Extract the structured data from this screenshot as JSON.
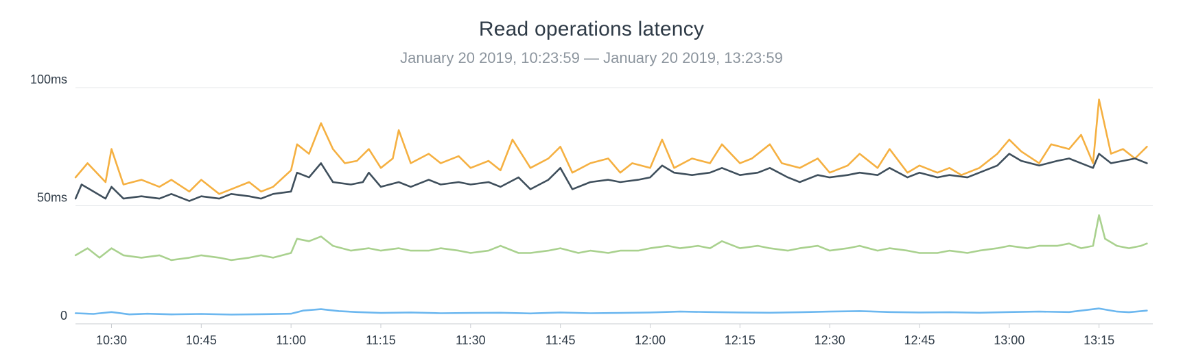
{
  "chart_data": {
    "type": "line",
    "title": "Read operations latency",
    "subtitle": "January 20 2019, 10:23:59 — January 20 2019, 13:23:59",
    "x_range": [
      "10:23:59",
      "13:23:59"
    ],
    "x_ticks": [
      "10:30",
      "10:45",
      "11:00",
      "11:15",
      "11:30",
      "11:45",
      "12:00",
      "12:15",
      "12:30",
      "12:45",
      "13:00",
      "13:15"
    ],
    "y_ticks": [
      "0",
      "50ms",
      "100ms"
    ],
    "ylim": [
      0,
      100
    ],
    "grid": true,
    "series": [
      {
        "color": "#f5b041",
        "points": [
          [
            "10:24",
            62
          ],
          [
            "10:26",
            68
          ],
          [
            "10:29",
            60
          ],
          [
            "10:30",
            74
          ],
          [
            "10:32",
            59
          ],
          [
            "10:35",
            61
          ],
          [
            "10:38",
            58
          ],
          [
            "10:40",
            61
          ],
          [
            "10:43",
            56
          ],
          [
            "10:45",
            61
          ],
          [
            "10:48",
            55
          ],
          [
            "10:50",
            57
          ],
          [
            "10:53",
            60
          ],
          [
            "10:55",
            56
          ],
          [
            "10:57",
            58
          ],
          [
            "11:00",
            65
          ],
          [
            "11:01",
            76
          ],
          [
            "11:03",
            72
          ],
          [
            "11:05",
            85
          ],
          [
            "11:07",
            74
          ],
          [
            "11:09",
            68
          ],
          [
            "11:11",
            69
          ],
          [
            "11:13",
            74
          ],
          [
            "11:15",
            66
          ],
          [
            "11:17",
            70
          ],
          [
            "11:18",
            82
          ],
          [
            "11:20",
            68
          ],
          [
            "11:23",
            72
          ],
          [
            "11:25",
            68
          ],
          [
            "11:28",
            71
          ],
          [
            "11:30",
            66
          ],
          [
            "11:33",
            69
          ],
          [
            "11:35",
            65
          ],
          [
            "11:37",
            78
          ],
          [
            "11:40",
            66
          ],
          [
            "11:43",
            70
          ],
          [
            "11:45",
            75
          ],
          [
            "11:47",
            64
          ],
          [
            "11:50",
            68
          ],
          [
            "11:53",
            70
          ],
          [
            "11:55",
            64
          ],
          [
            "11:57",
            68
          ],
          [
            "12:00",
            66
          ],
          [
            "12:02",
            78
          ],
          [
            "12:04",
            66
          ],
          [
            "12:07",
            70
          ],
          [
            "12:10",
            68
          ],
          [
            "12:12",
            76
          ],
          [
            "12:15",
            68
          ],
          [
            "12:17",
            70
          ],
          [
            "12:20",
            76
          ],
          [
            "12:22",
            68
          ],
          [
            "12:25",
            66
          ],
          [
            "12:28",
            70
          ],
          [
            "12:30",
            64
          ],
          [
            "12:33",
            67
          ],
          [
            "12:35",
            72
          ],
          [
            "12:38",
            66
          ],
          [
            "12:40",
            74
          ],
          [
            "12:43",
            64
          ],
          [
            "12:45",
            67
          ],
          [
            "12:48",
            64
          ],
          [
            "12:50",
            66
          ],
          [
            "12:52",
            63
          ],
          [
            "12:55",
            66
          ],
          [
            "12:58",
            72
          ],
          [
            "13:00",
            78
          ],
          [
            "13:02",
            73
          ],
          [
            "13:05",
            68
          ],
          [
            "13:07",
            76
          ],
          [
            "13:10",
            74
          ],
          [
            "13:12",
            80
          ],
          [
            "13:14",
            68
          ],
          [
            "13:15",
            95
          ],
          [
            "13:17",
            72
          ],
          [
            "13:19",
            74
          ],
          [
            "13:21",
            70
          ],
          [
            "13:23",
            75
          ]
        ]
      },
      {
        "color": "#3f4f5c",
        "points": [
          [
            "10:24",
            53
          ],
          [
            "10:25",
            59
          ],
          [
            "10:27",
            56
          ],
          [
            "10:29",
            53
          ],
          [
            "10:30",
            58
          ],
          [
            "10:32",
            53
          ],
          [
            "10:35",
            54
          ],
          [
            "10:38",
            53
          ],
          [
            "10:40",
            55
          ],
          [
            "10:43",
            52
          ],
          [
            "10:45",
            54
          ],
          [
            "10:48",
            53
          ],
          [
            "10:50",
            55
          ],
          [
            "10:53",
            54
          ],
          [
            "10:55",
            53
          ],
          [
            "10:57",
            55
          ],
          [
            "11:00",
            56
          ],
          [
            "11:01",
            64
          ],
          [
            "11:03",
            62
          ],
          [
            "11:05",
            68
          ],
          [
            "11:07",
            60
          ],
          [
            "11:10",
            59
          ],
          [
            "11:12",
            60
          ],
          [
            "11:13",
            64
          ],
          [
            "11:15",
            58
          ],
          [
            "11:18",
            60
          ],
          [
            "11:20",
            58
          ],
          [
            "11:23",
            61
          ],
          [
            "11:25",
            59
          ],
          [
            "11:28",
            60
          ],
          [
            "11:30",
            59
          ],
          [
            "11:33",
            60
          ],
          [
            "11:35",
            58
          ],
          [
            "11:38",
            62
          ],
          [
            "11:40",
            57
          ],
          [
            "11:43",
            61
          ],
          [
            "11:45",
            66
          ],
          [
            "11:47",
            57
          ],
          [
            "11:50",
            60
          ],
          [
            "11:53",
            61
          ],
          [
            "11:55",
            60
          ],
          [
            "11:58",
            61
          ],
          [
            "12:00",
            62
          ],
          [
            "12:02",
            67
          ],
          [
            "12:04",
            64
          ],
          [
            "12:07",
            63
          ],
          [
            "12:10",
            64
          ],
          [
            "12:12",
            66
          ],
          [
            "12:15",
            63
          ],
          [
            "12:18",
            64
          ],
          [
            "12:20",
            66
          ],
          [
            "12:23",
            62
          ],
          [
            "12:25",
            60
          ],
          [
            "12:28",
            63
          ],
          [
            "12:30",
            62
          ],
          [
            "12:33",
            63
          ],
          [
            "12:35",
            64
          ],
          [
            "12:38",
            63
          ],
          [
            "12:40",
            66
          ],
          [
            "12:43",
            62
          ],
          [
            "12:45",
            64
          ],
          [
            "12:48",
            62
          ],
          [
            "12:50",
            63
          ],
          [
            "12:53",
            62
          ],
          [
            "12:55",
            64
          ],
          [
            "12:58",
            67
          ],
          [
            "13:00",
            72
          ],
          [
            "13:02",
            69
          ],
          [
            "13:05",
            67
          ],
          [
            "13:08",
            69
          ],
          [
            "13:10",
            70
          ],
          [
            "13:12",
            68
          ],
          [
            "13:14",
            66
          ],
          [
            "13:15",
            72
          ],
          [
            "13:17",
            68
          ],
          [
            "13:19",
            69
          ],
          [
            "13:21",
            70
          ],
          [
            "13:23",
            68
          ]
        ]
      },
      {
        "color": "#a9d18e",
        "points": [
          [
            "10:24",
            29
          ],
          [
            "10:26",
            32
          ],
          [
            "10:28",
            28
          ],
          [
            "10:30",
            32
          ],
          [
            "10:32",
            29
          ],
          [
            "10:35",
            28
          ],
          [
            "10:38",
            29
          ],
          [
            "10:40",
            27
          ],
          [
            "10:43",
            28
          ],
          [
            "10:45",
            29
          ],
          [
            "10:48",
            28
          ],
          [
            "10:50",
            27
          ],
          [
            "10:53",
            28
          ],
          [
            "10:55",
            29
          ],
          [
            "10:57",
            28
          ],
          [
            "11:00",
            30
          ],
          [
            "11:01",
            36
          ],
          [
            "11:03",
            35
          ],
          [
            "11:05",
            37
          ],
          [
            "11:07",
            33
          ],
          [
            "11:10",
            31
          ],
          [
            "11:13",
            32
          ],
          [
            "11:15",
            31
          ],
          [
            "11:18",
            32
          ],
          [
            "11:20",
            31
          ],
          [
            "11:23",
            31
          ],
          [
            "11:25",
            32
          ],
          [
            "11:28",
            31
          ],
          [
            "11:30",
            30
          ],
          [
            "11:33",
            31
          ],
          [
            "11:35",
            33
          ],
          [
            "11:38",
            30
          ],
          [
            "11:40",
            30
          ],
          [
            "11:43",
            31
          ],
          [
            "11:45",
            32
          ],
          [
            "11:48",
            30
          ],
          [
            "11:50",
            31
          ],
          [
            "11:53",
            30
          ],
          [
            "11:55",
            31
          ],
          [
            "11:58",
            31
          ],
          [
            "12:00",
            32
          ],
          [
            "12:03",
            33
          ],
          [
            "12:05",
            32
          ],
          [
            "12:08",
            33
          ],
          [
            "12:10",
            32
          ],
          [
            "12:12",
            35
          ],
          [
            "12:15",
            32
          ],
          [
            "12:18",
            33
          ],
          [
            "12:20",
            32
          ],
          [
            "12:23",
            31
          ],
          [
            "12:25",
            32
          ],
          [
            "12:28",
            33
          ],
          [
            "12:30",
            31
          ],
          [
            "12:33",
            32
          ],
          [
            "12:35",
            33
          ],
          [
            "12:38",
            31
          ],
          [
            "12:40",
            32
          ],
          [
            "12:43",
            31
          ],
          [
            "12:45",
            30
          ],
          [
            "12:48",
            30
          ],
          [
            "12:50",
            31
          ],
          [
            "12:53",
            30
          ],
          [
            "12:55",
            31
          ],
          [
            "12:58",
            32
          ],
          [
            "13:00",
            33
          ],
          [
            "13:03",
            32
          ],
          [
            "13:05",
            33
          ],
          [
            "13:08",
            33
          ],
          [
            "13:10",
            34
          ],
          [
            "13:12",
            32
          ],
          [
            "13:14",
            33
          ],
          [
            "13:15",
            46
          ],
          [
            "13:16",
            36
          ],
          [
            "13:18",
            33
          ],
          [
            "13:20",
            32
          ],
          [
            "13:22",
            33
          ],
          [
            "13:23",
            34
          ]
        ]
      },
      {
        "color": "#6cb7ef",
        "points": [
          [
            "10:24",
            4.5
          ],
          [
            "10:27",
            4.2
          ],
          [
            "10:30",
            5.0
          ],
          [
            "10:33",
            4.0
          ],
          [
            "10:36",
            4.3
          ],
          [
            "10:40",
            4.0
          ],
          [
            "10:45",
            4.2
          ],
          [
            "10:50",
            3.9
          ],
          [
            "10:55",
            4.1
          ],
          [
            "11:00",
            4.3
          ],
          [
            "11:02",
            5.6
          ],
          [
            "11:05",
            6.2
          ],
          [
            "11:08",
            5.4
          ],
          [
            "11:11",
            5.0
          ],
          [
            "11:15",
            4.6
          ],
          [
            "11:20",
            4.8
          ],
          [
            "11:25",
            4.5
          ],
          [
            "11:30",
            4.6
          ],
          [
            "11:35",
            4.7
          ],
          [
            "11:40",
            4.4
          ],
          [
            "11:45",
            4.8
          ],
          [
            "11:50",
            4.5
          ],
          [
            "11:55",
            4.6
          ],
          [
            "12:00",
            4.8
          ],
          [
            "12:05",
            5.2
          ],
          [
            "12:10",
            5.0
          ],
          [
            "12:15",
            4.8
          ],
          [
            "12:20",
            4.7
          ],
          [
            "12:25",
            4.9
          ],
          [
            "12:30",
            5.2
          ],
          [
            "12:35",
            5.4
          ],
          [
            "12:40",
            5.0
          ],
          [
            "12:45",
            4.8
          ],
          [
            "12:50",
            4.9
          ],
          [
            "12:55",
            4.7
          ],
          [
            "13:00",
            5.0
          ],
          [
            "13:05",
            5.2
          ],
          [
            "13:10",
            5.0
          ],
          [
            "13:15",
            6.5
          ],
          [
            "13:18",
            5.2
          ],
          [
            "13:20",
            4.9
          ],
          [
            "13:23",
            5.6
          ]
        ]
      }
    ]
  }
}
